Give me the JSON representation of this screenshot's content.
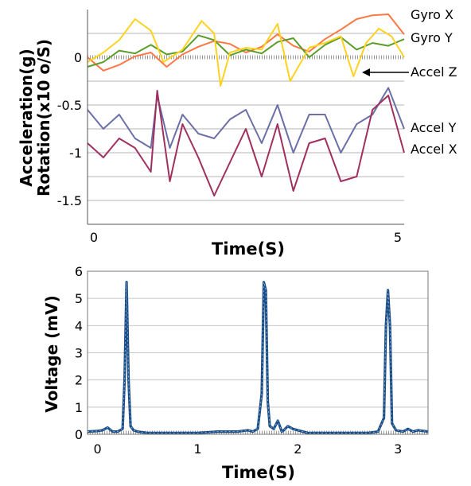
{
  "chart_data": [
    {
      "type": "line",
      "ylabel_line1": "Acceleration(g)",
      "ylabel_line2": "Rotation(x10 o/S)",
      "xlabel": "Time(S)",
      "xlim": [
        0,
        5
      ],
      "ylim": [
        -1.75,
        0.5
      ],
      "x_ticks": [
        "0",
        "5"
      ],
      "y_ticks": [
        "0",
        "-0.5",
        "-1",
        "-1.5"
      ],
      "grid": true,
      "legend": "right",
      "series": [
        {
          "name": "Gyro X",
          "color": "#ff7744",
          "x": [
            0,
            0.25,
            0.5,
            0.75,
            1,
            1.25,
            1.5,
            1.75,
            2,
            2.25,
            2.5,
            2.75,
            3,
            3.25,
            3.5,
            3.75,
            4,
            4.25,
            4.5,
            4.75,
            5
          ],
          "y": [
            0,
            -0.14,
            -0.08,
            0.01,
            0.05,
            -0.1,
            0.03,
            0.11,
            0.17,
            0.14,
            0.05,
            0.11,
            0.24,
            0.12,
            0.06,
            0.19,
            0.29,
            0.4,
            0.44,
            0.45,
            0.24
          ]
        },
        {
          "name": "Gyro Y",
          "color": "#5a9e2a",
          "x": [
            0,
            0.25,
            0.5,
            0.75,
            1,
            1.25,
            1.5,
            1.75,
            2,
            2.25,
            2.5,
            2.75,
            3,
            3.25,
            3.5,
            3.75,
            4,
            4.25,
            4.5,
            4.75,
            5
          ],
          "y": [
            -0.1,
            -0.05,
            0.07,
            0.04,
            0.13,
            0.03,
            0.06,
            0.23,
            0.18,
            0.02,
            0.08,
            0.04,
            0.16,
            0.2,
            0.0,
            0.13,
            0.21,
            0.08,
            0.15,
            0.12,
            0.19
          ]
        },
        {
          "name": "Accel Z",
          "color": "#ffd21f",
          "x": [
            0,
            0.25,
            0.5,
            0.75,
            1,
            1.2,
            1.5,
            1.8,
            2,
            2.1,
            2.25,
            2.5,
            2.75,
            3,
            3.2,
            3.5,
            3.75,
            4,
            4.2,
            4.4,
            4.6,
            4.8,
            5
          ],
          "y": [
            -0.05,
            0.05,
            0.18,
            0.4,
            0.28,
            -0.05,
            0.08,
            0.38,
            0.25,
            -0.3,
            0.05,
            0.1,
            0.08,
            0.35,
            -0.25,
            0.1,
            0.15,
            0.22,
            -0.2,
            0.15,
            0.3,
            0.22,
            0.0
          ]
        },
        {
          "name": "Accel Y",
          "color": "#6b70a6",
          "x": [
            0,
            0.25,
            0.5,
            0.75,
            1,
            1.1,
            1.3,
            1.5,
            1.75,
            2,
            2.25,
            2.5,
            2.75,
            3,
            3.25,
            3.5,
            3.75,
            4,
            4.25,
            4.5,
            4.75,
            5
          ],
          "y": [
            -0.55,
            -0.75,
            -0.6,
            -0.85,
            -0.95,
            -0.4,
            -0.95,
            -0.6,
            -0.8,
            -0.85,
            -0.65,
            -0.55,
            -0.9,
            -0.5,
            -1.0,
            -0.6,
            -0.6,
            -1.0,
            -0.7,
            -0.6,
            -0.32,
            -0.75
          ]
        },
        {
          "name": "Accel X",
          "color": "#a0305f",
          "x": [
            0,
            0.25,
            0.5,
            0.75,
            1,
            1.1,
            1.3,
            1.5,
            1.75,
            2,
            2.25,
            2.5,
            2.75,
            3,
            3.25,
            3.5,
            3.75,
            4,
            4.25,
            4.5,
            4.75,
            5
          ],
          "y": [
            -0.9,
            -1.05,
            -0.85,
            -0.95,
            -1.2,
            -0.35,
            -1.3,
            -0.7,
            -1.05,
            -1.45,
            -1.1,
            -0.75,
            -1.25,
            -0.7,
            -1.4,
            -0.9,
            -0.85,
            -1.3,
            -1.25,
            -0.55,
            -0.4,
            -1.0
          ]
        }
      ]
    },
    {
      "type": "line",
      "ylabel": "Voltage (mV)",
      "xlabel": "Time(S)",
      "xlim": [
        -0.1,
        3.3
      ],
      "ylim": [
        0,
        6
      ],
      "x_ticks": [
        "0",
        "1",
        "2",
        "3"
      ],
      "y_ticks": [
        "0",
        "1",
        "2",
        "3",
        "4",
        "5",
        "6"
      ],
      "grid": true,
      "series": [
        {
          "color": "#1a4f8a",
          "x": [
            -0.1,
            0.0,
            0.05,
            0.1,
            0.15,
            0.2,
            0.25,
            0.27,
            0.29,
            0.31,
            0.33,
            0.36,
            0.4,
            0.5,
            0.6,
            0.8,
            1.0,
            1.2,
            1.4,
            1.5,
            1.55,
            1.6,
            1.64,
            1.66,
            1.68,
            1.7,
            1.72,
            1.76,
            1.8,
            1.84,
            1.86,
            1.9,
            1.95,
            2.0,
            2.05,
            2.1,
            2.2,
            2.4,
            2.6,
            2.7,
            2.8,
            2.86,
            2.88,
            2.9,
            2.92,
            2.94,
            2.98,
            3.05,
            3.1,
            3.15,
            3.2,
            3.3
          ],
          "y": [
            0.1,
            0.12,
            0.15,
            0.25,
            0.1,
            0.1,
            0.2,
            2.0,
            5.6,
            2.0,
            0.3,
            0.15,
            0.1,
            0.05,
            0.05,
            0.05,
            0.05,
            0.1,
            0.1,
            0.15,
            0.1,
            0.2,
            1.5,
            5.6,
            5.3,
            1.2,
            0.3,
            0.2,
            0.5,
            0.1,
            0.15,
            0.3,
            0.2,
            0.15,
            0.1,
            0.05,
            0.05,
            0.05,
            0.05,
            0.05,
            0.1,
            0.6,
            4.0,
            5.3,
            4.0,
            0.4,
            0.15,
            0.1,
            0.2,
            0.1,
            0.15,
            0.1
          ]
        }
      ]
    }
  ]
}
